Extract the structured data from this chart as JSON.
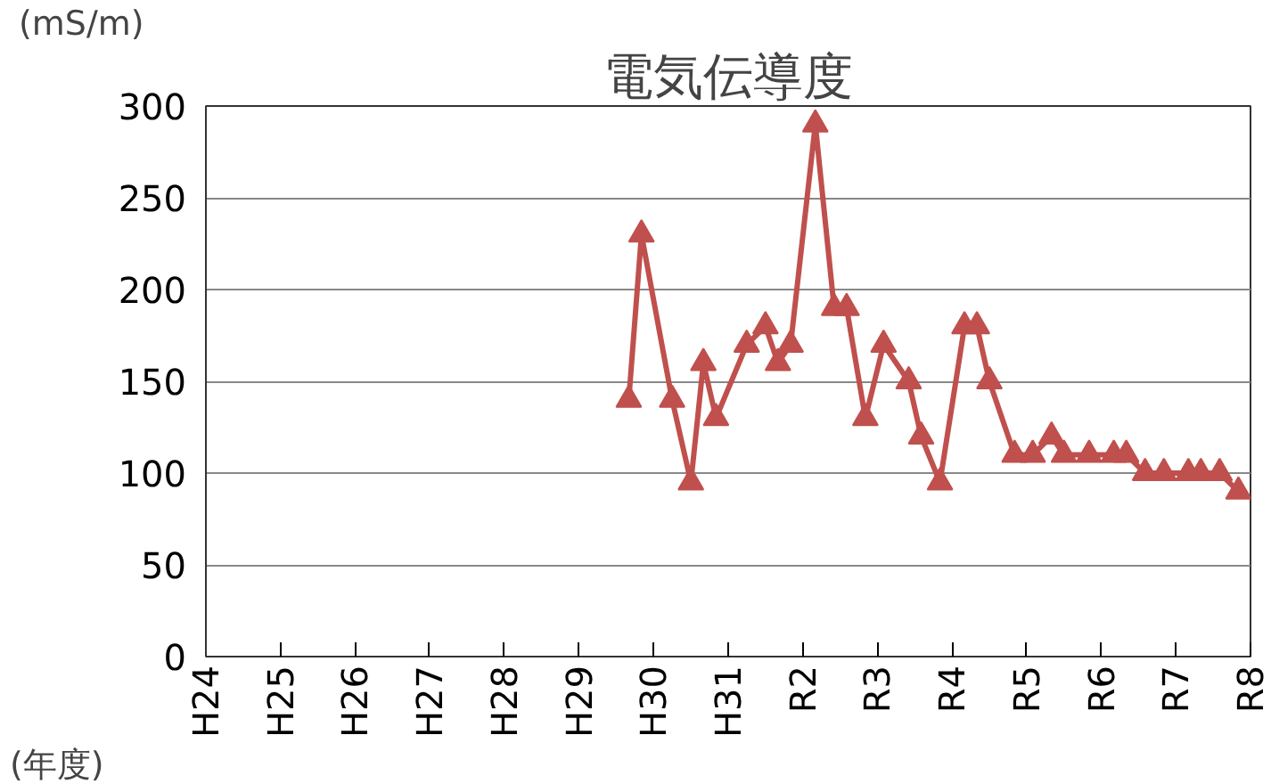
{
  "chart_data": {
    "type": "line",
    "title": "電気伝導度",
    "ylabel": "(mS/m)",
    "xlabel": "(年度)",
    "x": [
      "2017-12",
      "2018-02",
      "2018-07",
      "2018-10",
      "2018-12",
      "2019-02",
      "2019-07",
      "2019-10",
      "2019-12",
      "2020-02",
      "2020-06",
      "2020-09",
      "2020-11",
      "2021-02",
      "2021-05",
      "2021-09",
      "2021-11",
      "2022-02",
      "2022-06",
      "2022-08",
      "2022-10",
      "2023-02",
      "2023-05",
      "2023-08",
      "2023-10",
      "2024-02",
      "2024-06",
      "2024-08",
      "2024-11",
      "2025-02",
      "2025-06",
      "2025-08",
      "2025-11",
      "2026-02"
    ],
    "series": [
      {
        "color": "#c0504d",
        "values": [
          140,
          230,
          140,
          95,
          160,
          130,
          170,
          180,
          160,
          170,
          290,
          190,
          190,
          130,
          170,
          150,
          120,
          95,
          180,
          180,
          150,
          110,
          110,
          120,
          110,
          110,
          110,
          110,
          100,
          100,
          100,
          100,
          100,
          90
        ]
      }
    ],
    "xlim": [
      "2012-04",
      "2026-04"
    ],
    "xticks": [
      {
        "value": "2012-04",
        "label": "H24"
      },
      {
        "value": "2013-04",
        "label": "H25"
      },
      {
        "value": "2014-04",
        "label": "H26"
      },
      {
        "value": "2015-04",
        "label": "H27"
      },
      {
        "value": "2016-04",
        "label": "H28"
      },
      {
        "value": "2017-04",
        "label": "H29"
      },
      {
        "value": "2018-04",
        "label": "H30"
      },
      {
        "value": "2019-04",
        "label": "H31"
      },
      {
        "value": "2020-04",
        "label": "R2"
      },
      {
        "value": "2021-04",
        "label": "R3"
      },
      {
        "value": "2022-04",
        "label": "R4"
      },
      {
        "value": "2023-04",
        "label": "R5"
      },
      {
        "value": "2024-04",
        "label": "R6"
      },
      {
        "value": "2025-04",
        "label": "R7"
      },
      {
        "value": "2026-04",
        "label": "R8"
      }
    ],
    "ylim": [
      0,
      300
    ],
    "yticks": [
      0,
      50,
      100,
      150,
      200,
      250,
      300
    ],
    "grid": "y",
    "marker": "triangle",
    "line_style": "solid"
  }
}
